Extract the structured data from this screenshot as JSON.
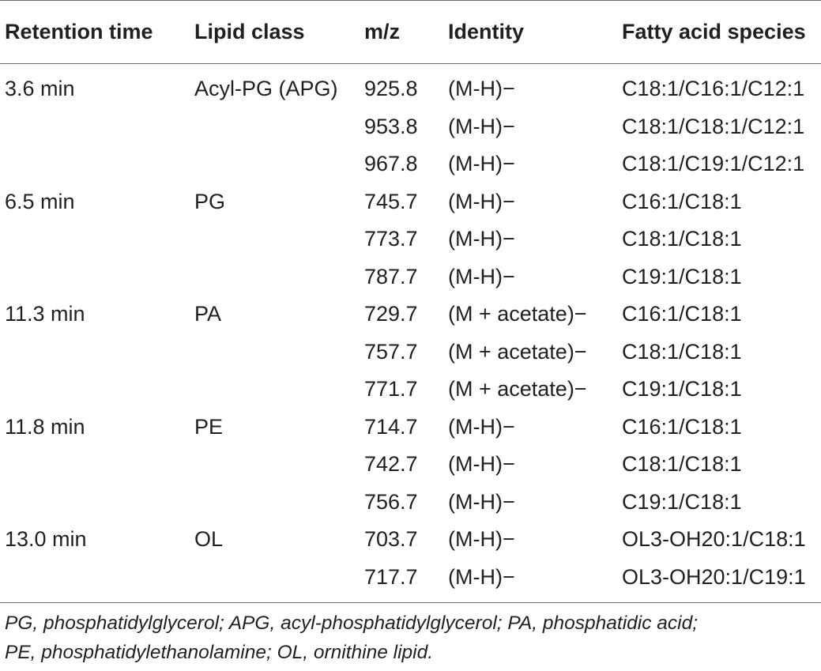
{
  "table": {
    "headers": [
      "Retention time",
      "Lipid class",
      "m/z",
      "Identity",
      "Fatty acid species"
    ],
    "rows": [
      [
        "3.6 min",
        "Acyl-PG (APG)",
        "925.8",
        "(M-H)−",
        "C18:1/C16:1/C12:1"
      ],
      [
        "",
        "",
        "953.8",
        "(M-H)−",
        "C18:1/C18:1/C12:1"
      ],
      [
        "",
        "",
        "967.8",
        "(M-H)−",
        "C18:1/C19:1/C12:1"
      ],
      [
        "6.5 min",
        "PG",
        "745.7",
        "(M-H)−",
        "C16:1/C18:1"
      ],
      [
        "",
        "",
        "773.7",
        "(M-H)−",
        "C18:1/C18:1"
      ],
      [
        "",
        "",
        "787.7",
        "(M-H)−",
        "C19:1/C18:1"
      ],
      [
        "11.3 min",
        "PA",
        "729.7",
        "(M + acetate)−",
        "C16:1/C18:1"
      ],
      [
        "",
        "",
        "757.7",
        "(M + acetate)−",
        "C18:1/C18:1"
      ],
      [
        "",
        "",
        "771.7",
        "(M + acetate)−",
        "C19:1/C18:1"
      ],
      [
        "11.8 min",
        "PE",
        "714.7",
        "(M-H)−",
        "C16:1/C18:1"
      ],
      [
        "",
        "",
        "742.7",
        "(M-H)−",
        "C18:1/C18:1"
      ],
      [
        "",
        "",
        "756.7",
        "(M-H)−",
        "C19:1/C18:1"
      ],
      [
        "13.0 min",
        "OL",
        "703.7",
        "(M-H)−",
        "OL3-OH20:1/C18:1"
      ],
      [
        "",
        "",
        "717.7",
        "(M-H)−",
        "OL3-OH20:1/C19:1"
      ]
    ]
  },
  "footnote": {
    "line1": "PG, phosphatidylglycerol; APG, acyl-phosphatidylglycerol; PA, phosphatidic acid;",
    "line2": "PE, phosphatidylethanolamine; OL, ornithine lipid."
  }
}
